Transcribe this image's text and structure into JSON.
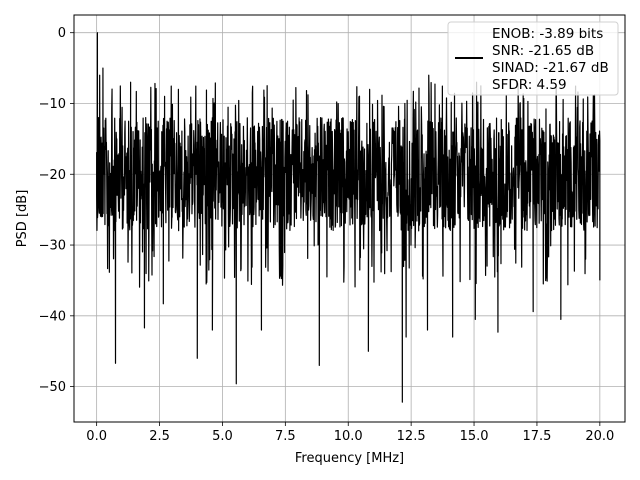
{
  "chart_data": {
    "type": "line",
    "xlabel": "Frequency [MHz]",
    "ylabel": "PSD [dB]",
    "xlim": [
      -0.9,
      21.0
    ],
    "ylim": [
      -55,
      2.5
    ],
    "xticks": [
      0.0,
      2.5,
      5.0,
      7.5,
      10.0,
      12.5,
      15.0,
      17.5,
      20.0
    ],
    "xtick_labels": [
      "0.0",
      "2.5",
      "5.0",
      "7.5",
      "10.0",
      "12.5",
      "15.0",
      "17.5",
      "20.0"
    ],
    "yticks": [
      0,
      -10,
      -20,
      -30,
      -40,
      -50
    ],
    "ytick_labels": [
      "0",
      "−10",
      "−20",
      "−30",
      "−40",
      "−50"
    ],
    "grid": true,
    "legend_position": "upper-right",
    "legend_lines": [
      "ENOB: -3.89 bits",
      "SNR: -21.65 dB",
      "SINAD: -21.67 dB",
      "SFDR: 4.59"
    ],
    "series": [
      {
        "color": "#000000",
        "note": "dense noise-like PSD trace; band mostly between -10 and -30 dB",
        "x": [
          0.0,
          0.03,
          0.08,
          0.12,
          0.2,
          0.25,
          0.3,
          0.7,
          0.75,
          0.8,
          1.3,
          1.35,
          1.4,
          1.85,
          1.9,
          1.95,
          2.6,
          2.65,
          2.7,
          3.2,
          3.25,
          3.3,
          3.95,
          4.0,
          4.05,
          4.55,
          4.6,
          4.65,
          5.5,
          5.55,
          5.6,
          6.5,
          6.55,
          6.6,
          8.8,
          8.85,
          8.9,
          10.75,
          10.8,
          10.85,
          12.1,
          12.15,
          12.2,
          12.25,
          12.3,
          12.35,
          13.1,
          13.15,
          13.2,
          14.1,
          14.15,
          14.2,
          15.0,
          15.05,
          15.1,
          15.9,
          15.95,
          16.0,
          17.3,
          17.35,
          17.4,
          18.4,
          18.45,
          18.5,
          20.0
        ],
        "y": [
          -23,
          0,
          -12,
          -6,
          -26,
          -5,
          -20,
          -18,
          -46.7,
          -15,
          -25,
          -7,
          -33,
          -18,
          -41.7,
          -12,
          -22,
          -38.3,
          -9,
          -24,
          -8,
          -26,
          -20,
          -46,
          -13,
          -24,
          -42,
          -18,
          -14,
          -49.6,
          -20,
          -25,
          -42,
          -15,
          -30,
          -47,
          -12,
          -26,
          -45,
          -8,
          -16,
          -52.2,
          -22,
          -10,
          -43,
          -20,
          -18,
          -42,
          -6,
          -24,
          -43,
          -14,
          -24,
          -40.5,
          -7,
          -20,
          -42.3,
          -16,
          -18,
          -39.4,
          -22,
          -19,
          -40.5,
          -20,
          -35
        ]
      }
    ]
  }
}
